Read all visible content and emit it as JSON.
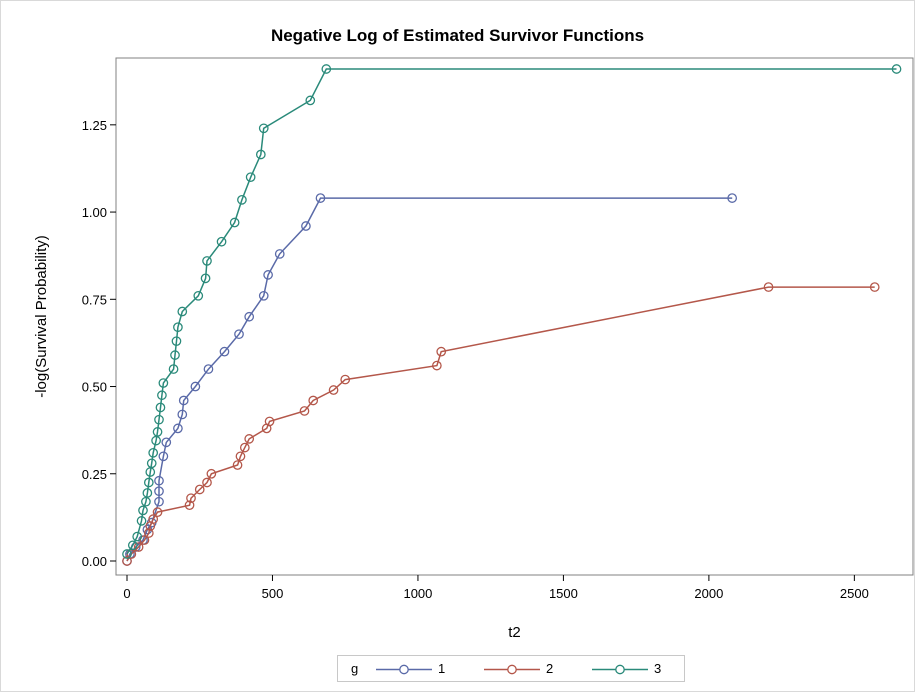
{
  "chart_data": {
    "type": "line",
    "title": "Negative Log of Estimated Survivor Functions",
    "xlabel": "t2",
    "ylabel": "-log(Survival Probability)",
    "xlim": [
      0,
      2650
    ],
    "ylim": [
      0,
      1.41
    ],
    "xticks": [
      "0",
      "500",
      "1000",
      "1500",
      "2000",
      "2500"
    ],
    "yticks": [
      "0.00",
      "0.25",
      "0.50",
      "0.75",
      "1.00",
      "1.25"
    ],
    "xtick_values": [
      0,
      500,
      1000,
      1500,
      2000,
      2500
    ],
    "ytick_values": [
      0,
      0.25,
      0.5,
      0.75,
      1.0,
      1.25
    ],
    "grid": false,
    "legend": {
      "title": "g",
      "placement": "bottom"
    },
    "series": [
      {
        "name": "1",
        "color": "#5a6aa8",
        "points": [
          [
            0,
            0
          ],
          [
            10,
            0.02
          ],
          [
            30,
            0.04
          ],
          [
            55,
            0.06
          ],
          [
            70,
            0.09
          ],
          [
            85,
            0.11
          ],
          [
            110,
            0.17
          ],
          [
            110,
            0.2
          ],
          [
            110,
            0.23
          ],
          [
            125,
            0.3
          ],
          [
            135,
            0.34
          ],
          [
            175,
            0.38
          ],
          [
            190,
            0.42
          ],
          [
            195,
            0.46
          ],
          [
            235,
            0.5
          ],
          [
            280,
            0.55
          ],
          [
            335,
            0.6
          ],
          [
            385,
            0.65
          ],
          [
            420,
            0.7
          ],
          [
            470,
            0.76
          ],
          [
            485,
            0.82
          ],
          [
            525,
            0.88
          ],
          [
            615,
            0.96
          ],
          [
            665,
            1.04
          ],
          [
            2080,
            1.04
          ]
        ]
      },
      {
        "name": "2",
        "color": "#b4574a",
        "points": [
          [
            0,
            0
          ],
          [
            15,
            0.02
          ],
          [
            40,
            0.04
          ],
          [
            60,
            0.06
          ],
          [
            75,
            0.08
          ],
          [
            80,
            0.1
          ],
          [
            90,
            0.12
          ],
          [
            105,
            0.14
          ],
          [
            215,
            0.16
          ],
          [
            220,
            0.18
          ],
          [
            250,
            0.205
          ],
          [
            275,
            0.225
          ],
          [
            290,
            0.25
          ],
          [
            380,
            0.275
          ],
          [
            390,
            0.3
          ],
          [
            405,
            0.325
          ],
          [
            420,
            0.35
          ],
          [
            480,
            0.38
          ],
          [
            490,
            0.4
          ],
          [
            610,
            0.43
          ],
          [
            640,
            0.46
          ],
          [
            710,
            0.49
          ],
          [
            750,
            0.52
          ],
          [
            1065,
            0.56
          ],
          [
            1080,
            0.6
          ],
          [
            2205,
            0.785
          ],
          [
            2570,
            0.785
          ]
        ]
      },
      {
        "name": "3",
        "color": "#2a8a7a",
        "points": [
          [
            0,
            0.02
          ],
          [
            20,
            0.045
          ],
          [
            35,
            0.07
          ],
          [
            50,
            0.115
          ],
          [
            55,
            0.145
          ],
          [
            65,
            0.17
          ],
          [
            70,
            0.195
          ],
          [
            75,
            0.225
          ],
          [
            80,
            0.255
          ],
          [
            85,
            0.28
          ],
          [
            90,
            0.31
          ],
          [
            100,
            0.345
          ],
          [
            105,
            0.37
          ],
          [
            110,
            0.405
          ],
          [
            115,
            0.44
          ],
          [
            120,
            0.475
          ],
          [
            125,
            0.51
          ],
          [
            160,
            0.55
          ],
          [
            165,
            0.59
          ],
          [
            170,
            0.63
          ],
          [
            175,
            0.67
          ],
          [
            190,
            0.715
          ],
          [
            245,
            0.76
          ],
          [
            270,
            0.81
          ],
          [
            275,
            0.86
          ],
          [
            325,
            0.915
          ],
          [
            370,
            0.97
          ],
          [
            395,
            1.035
          ],
          [
            425,
            1.1
          ],
          [
            460,
            1.165
          ],
          [
            470,
            1.24
          ],
          [
            630,
            1.32
          ],
          [
            685,
            1.41
          ],
          [
            2645,
            1.41
          ]
        ]
      }
    ]
  }
}
